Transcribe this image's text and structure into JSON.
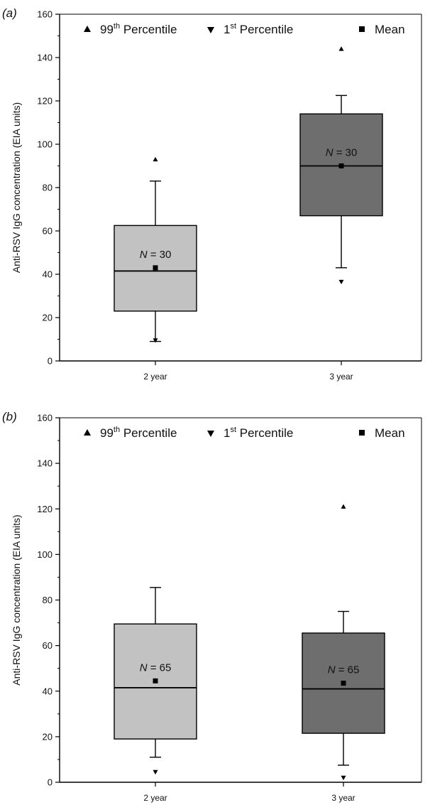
{
  "chart_data": [
    {
      "type": "box",
      "panel_label": "(a)",
      "ylabel": "Anti-RSV IgG concentration (EIA units)",
      "ylim": [
        0,
        160
      ],
      "yticks": [
        0,
        20,
        40,
        60,
        80,
        100,
        120,
        140,
        160
      ],
      "categories": [
        "2 year",
        "3 year"
      ],
      "legend": {
        "position": "top",
        "items": [
          {
            "marker": "triangle-up",
            "base": "99",
            "sup": "th",
            "text": " Percentile"
          },
          {
            "marker": "triangle-down",
            "base": "1",
            "sup": "st",
            "text": " Percentile"
          },
          {
            "marker": "square",
            "base": "Mean",
            "sup": "",
            "text": ""
          }
        ]
      },
      "boxes": [
        {
          "category": "2 year",
          "fill": "#c2c2c2",
          "q1": 23,
          "median": 41.5,
          "q3": 62.5,
          "whisker_low": 9,
          "whisker_high": 83,
          "p99": 93,
          "p1": 9.5,
          "mean": 43,
          "n_prefix": "N",
          "n_value": "= 30"
        },
        {
          "category": "3 year",
          "fill": "#6e6e6e",
          "q1": 67,
          "median": 90,
          "q3": 114,
          "whisker_low": 43,
          "whisker_high": 122.5,
          "p99": 144,
          "p1": 36.5,
          "mean": 90,
          "n_prefix": "N",
          "n_value": "= 30"
        }
      ]
    },
    {
      "type": "box",
      "panel_label": "(b)",
      "ylabel": "Anti-RSV IgG concentration (EIA units)",
      "ylim": [
        0,
        160
      ],
      "yticks": [
        0,
        20,
        40,
        60,
        80,
        100,
        120,
        140,
        160
      ],
      "categories": [
        "2 year",
        "3 year"
      ],
      "legend": {
        "position": "top",
        "items": [
          {
            "marker": "triangle-up",
            "base": "99",
            "sup": "th",
            "text": " Percentile"
          },
          {
            "marker": "triangle-down",
            "base": "1",
            "sup": "st",
            "text": " Percentile"
          },
          {
            "marker": "square",
            "base": "Mean",
            "sup": "",
            "text": ""
          }
        ]
      },
      "boxes": [
        {
          "category": "2 year",
          "fill": "#c2c2c2",
          "q1": 19,
          "median": 41.5,
          "q3": 69.5,
          "whisker_low": 11,
          "whisker_high": 85.5,
          "p99": null,
          "p1": 4.5,
          "mean": 44.5,
          "n_prefix": "N",
          "n_value": "= 65"
        },
        {
          "category": "3 year",
          "fill": "#6e6e6e",
          "q1": 21.5,
          "median": 41,
          "q3": 65.5,
          "whisker_low": 7.5,
          "whisker_high": 75,
          "p99": 121,
          "p1": 2,
          "mean": 43.5,
          "n_prefix": "N",
          "n_value": "= 65"
        }
      ]
    }
  ]
}
